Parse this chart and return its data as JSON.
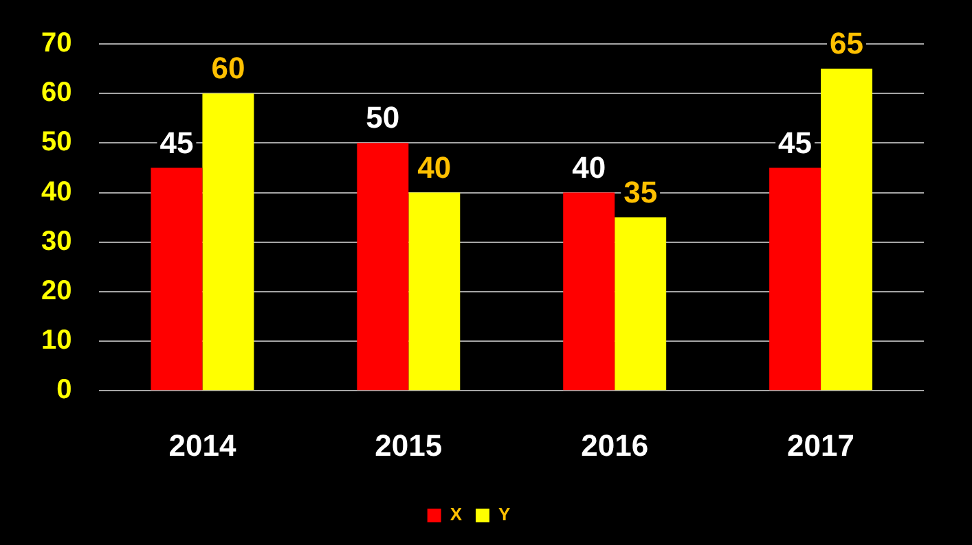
{
  "chart_data": {
    "type": "bar",
    "categories": [
      "2014",
      "2015",
      "2016",
      "2017"
    ],
    "series": [
      {
        "name": "X",
        "color": "#ff0000",
        "values": [
          45,
          50,
          40,
          45
        ]
      },
      {
        "name": "Y",
        "color": "#ffff00",
        "values": [
          60,
          40,
          35,
          65
        ]
      }
    ],
    "ylim": [
      0,
      70
    ],
    "yticks": [
      0,
      10,
      20,
      30,
      40,
      50,
      60,
      70
    ],
    "grid": true,
    "legend": "bottom",
    "data_labels": true
  }
}
